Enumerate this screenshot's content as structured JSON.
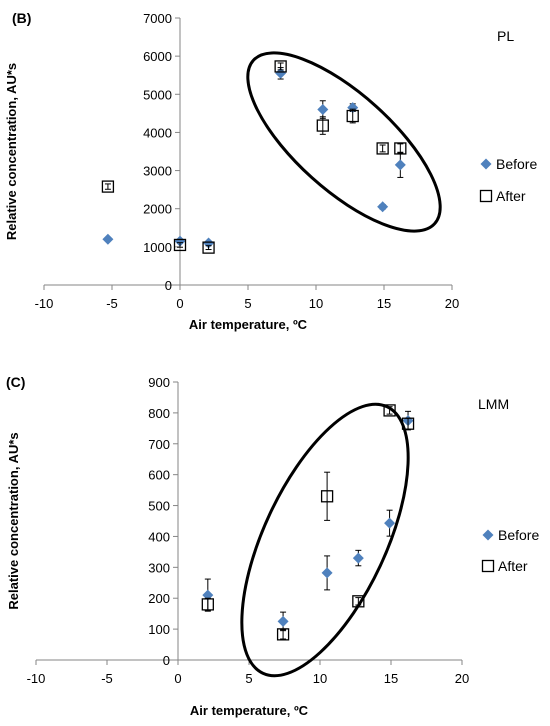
{
  "chart_data": [
    {
      "type": "scatter",
      "panel_label": "(B)",
      "annotation": "PL",
      "xlabel": "Air temperature, ºC",
      "ylabel": "Relative concentration, AU*s",
      "xlim": [
        -10,
        20
      ],
      "ylim": [
        0,
        7000
      ],
      "xticks": [
        -10,
        -5,
        0,
        5,
        10,
        15,
        20
      ],
      "yticks": [
        0,
        1000,
        2000,
        3000,
        4000,
        5000,
        6000,
        7000
      ],
      "grid": false,
      "legend_position": "right",
      "series": [
        {
          "name": "Before",
          "marker": "diamond",
          "color": "#4f81bd",
          "points": [
            {
              "x": -5.3,
              "y": 1200,
              "err": 0
            },
            {
              "x": 0.0,
              "y": 1150,
              "err": 0
            },
            {
              "x": 2.1,
              "y": 1100,
              "err": 0
            },
            {
              "x": 7.4,
              "y": 5550,
              "err": 150
            },
            {
              "x": 10.5,
              "y": 4600,
              "err": 230
            },
            {
              "x": 12.7,
              "y": 4650,
              "err": 100
            },
            {
              "x": 14.9,
              "y": 2050,
              "err": 60
            },
            {
              "x": 16.2,
              "y": 3150,
              "err": 330
            }
          ]
        },
        {
          "name": "After",
          "marker": "square",
          "color": "#000000",
          "points": [
            {
              "x": -5.3,
              "y": 2580,
              "err": 70
            },
            {
              "x": 0.0,
              "y": 1050,
              "err": 60
            },
            {
              "x": 2.1,
              "y": 980,
              "err": 50
            },
            {
              "x": 7.4,
              "y": 5730,
              "err": 90
            },
            {
              "x": 10.5,
              "y": 4180,
              "err": 230
            },
            {
              "x": 12.7,
              "y": 4430,
              "err": 180
            },
            {
              "x": 14.9,
              "y": 3580,
              "err": 90
            },
            {
              "x": 16.2,
              "y": 3580,
              "err": 120
            }
          ]
        }
      ],
      "ellipse": {
        "cx": 11.8,
        "cy": 4100,
        "rx": 8.3,
        "ry": 1150,
        "angle": -42
      }
    },
    {
      "type": "scatter",
      "panel_label": "(C)",
      "annotation": "LMM",
      "xlabel": "Air temperature, ºC",
      "ylabel": "Relative concentration, AU*s",
      "xlim": [
        -10,
        20
      ],
      "ylim": [
        0,
        900
      ],
      "xticks": [
        -10,
        -5,
        0,
        5,
        10,
        15,
        20
      ],
      "yticks": [
        0,
        100,
        200,
        300,
        400,
        500,
        600,
        700,
        800,
        900
      ],
      "grid": false,
      "legend_position": "right",
      "series": [
        {
          "name": "Before",
          "marker": "diamond",
          "color": "#4f81bd",
          "points": [
            {
              "x": 2.1,
              "y": 210,
              "err": 52
            },
            {
              "x": 7.4,
              "y": 125,
              "err": 30
            },
            {
              "x": 10.5,
              "y": 282,
              "err": 55
            },
            {
              "x": 12.7,
              "y": 330,
              "err": 25
            },
            {
              "x": 14.9,
              "y": 443,
              "err": 42
            },
            {
              "x": 16.2,
              "y": 775,
              "err": 30
            }
          ]
        },
        {
          "name": "After",
          "marker": "square",
          "color": "#000000",
          "points": [
            {
              "x": 2.1,
              "y": 180,
              "err": 20
            },
            {
              "x": 7.4,
              "y": 83,
              "err": 15
            },
            {
              "x": 10.5,
              "y": 530,
              "err": 78
            },
            {
              "x": 12.7,
              "y": 190,
              "err": 12
            },
            {
              "x": 14.9,
              "y": 808,
              "err": 12
            },
            {
              "x": 16.2,
              "y": 765,
              "err": 18
            }
          ]
        }
      ],
      "ellipse": {
        "cx": 11.0,
        "cy": 445,
        "rx": 415,
        "ry": 4.2,
        "angle": -28
      }
    }
  ]
}
